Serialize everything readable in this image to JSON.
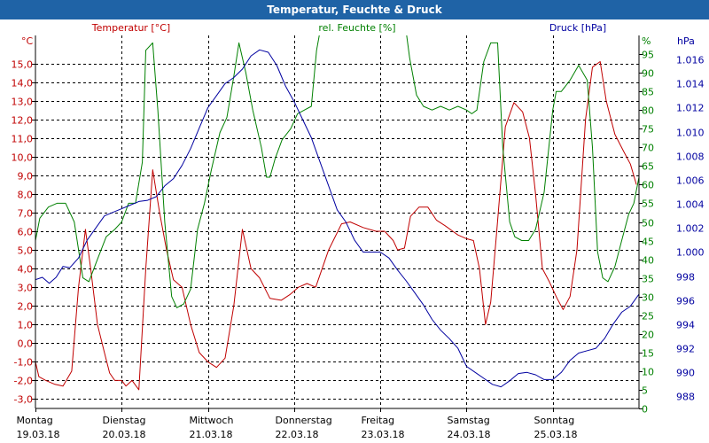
{
  "window": {
    "title": "Temperatur, Feuchte & Druck"
  },
  "colors": {
    "temperature": "#c00000",
    "humidity": "#008000",
    "pressure": "#0000a0",
    "grid": "#000000",
    "title_bar": "#1f63a6"
  },
  "chart_data": {
    "type": "line",
    "title": "Temperatur, Feuchte & Druck",
    "x_range": [
      0,
      7
    ],
    "x_labels": [
      {
        "day": "Montag",
        "date": "19.03.18",
        "x": 0
      },
      {
        "day": "Dienstag",
        "date": "20.03.18",
        "x": 1
      },
      {
        "day": "Mittwoch",
        "date": "21.03.18",
        "x": 2
      },
      {
        "day": "Donnerstag",
        "date": "22.03.18",
        "x": 3
      },
      {
        "day": "Freitag",
        "date": "23.03.18",
        "x": 4
      },
      {
        "day": "Samstag",
        "date": "24.03.18",
        "x": 5
      },
      {
        "day": "Sonntag",
        "date": "25.03.18",
        "x": 6
      }
    ],
    "axes": {
      "temperature": {
        "label": "Temperatur [°C]",
        "unit": "°C",
        "range": [
          -3.5,
          16.5
        ],
        "ticks": [
          -3.0,
          -2.0,
          -1.0,
          0.0,
          1.0,
          2.0,
          3.0,
          4.0,
          5.0,
          6.0,
          7.0,
          8.0,
          9.0,
          10.0,
          11.0,
          12.0,
          13.0,
          14.0,
          15.0
        ],
        "tick_labels": [
          "-3,0",
          "-2,0",
          "-1,0",
          "0,0",
          "1,0",
          "2,0",
          "3,0",
          "4,0",
          "5,0",
          "6,0",
          "7,0",
          "8,0",
          "9,0",
          "10,0",
          "11,0",
          "12,0",
          "13,0",
          "14,0",
          "15,0"
        ]
      },
      "humidity": {
        "label": "rel. Feuchte [%]",
        "unit": "%",
        "range": [
          0,
          100
        ],
        "ticks": [
          0,
          5,
          10,
          15,
          20,
          25,
          30,
          35,
          40,
          45,
          50,
          55,
          60,
          65,
          70,
          75,
          80,
          85,
          90,
          95
        ],
        "tick_labels": [
          "0",
          "5",
          "10",
          "15",
          "20",
          "25",
          "30",
          "35",
          "40",
          "45",
          "50",
          "55",
          "60",
          "65",
          "70",
          "75",
          "80",
          "85",
          "90",
          "95"
        ]
      },
      "pressure": {
        "label": "Druck [hPa]",
        "unit": "hPa",
        "range": [
          987,
          1018
        ],
        "ticks": [
          988,
          990,
          992,
          994,
          996,
          998,
          1000,
          1002,
          1004,
          1006,
          1008,
          1010,
          1012,
          1014,
          1016
        ],
        "tick_labels": [
          "988",
          "990",
          "992",
          "994",
          "996",
          "998",
          "1.000",
          "1.002",
          "1.004",
          "1.006",
          "1.008",
          "1.010",
          "1.012",
          "1.014",
          "1.016"
        ]
      }
    },
    "series": [
      {
        "name": "Temperatur",
        "axis": "temperature",
        "points": [
          [
            0,
            -1
          ],
          [
            0.04,
            -1.8
          ],
          [
            0.12,
            -2.0
          ],
          [
            0.22,
            -2.2
          ],
          [
            0.32,
            -2.3
          ],
          [
            0.42,
            -1.5
          ],
          [
            0.5,
            3
          ],
          [
            0.58,
            6.1
          ],
          [
            0.64,
            4
          ],
          [
            0.72,
            1
          ],
          [
            0.8,
            -0.5
          ],
          [
            0.86,
            -1.6
          ],
          [
            0.92,
            -2.0
          ],
          [
            1.0,
            -2.0
          ],
          [
            1.05,
            -2.3
          ],
          [
            1.12,
            -2.0
          ],
          [
            1.2,
            -2.5
          ],
          [
            1.28,
            4
          ],
          [
            1.36,
            9.3
          ],
          [
            1.44,
            7
          ],
          [
            1.52,
            5
          ],
          [
            1.6,
            3.4
          ],
          [
            1.7,
            3
          ],
          [
            1.8,
            1
          ],
          [
            1.9,
            -0.5
          ],
          [
            2.0,
            -1.0
          ],
          [
            2.1,
            -1.3
          ],
          [
            2.2,
            -0.8
          ],
          [
            2.3,
            2
          ],
          [
            2.4,
            6.1
          ],
          [
            2.5,
            4
          ],
          [
            2.6,
            3.5
          ],
          [
            2.72,
            2.4
          ],
          [
            2.85,
            2.3
          ],
          [
            2.95,
            2.6
          ],
          [
            3.05,
            3
          ],
          [
            3.15,
            3.2
          ],
          [
            3.25,
            3.0
          ],
          [
            3.4,
            5
          ],
          [
            3.55,
            6.4
          ],
          [
            3.65,
            6.5
          ],
          [
            3.8,
            6.2
          ],
          [
            3.95,
            6.0
          ],
          [
            4.05,
            6.0
          ],
          [
            4.15,
            5.5
          ],
          [
            4.2,
            5.0
          ],
          [
            4.28,
            5.1
          ],
          [
            4.35,
            6.8
          ],
          [
            4.45,
            7.3
          ],
          [
            4.55,
            7.3
          ],
          [
            4.65,
            6.6
          ],
          [
            4.75,
            6.3
          ],
          [
            4.9,
            5.8
          ],
          [
            5.0,
            5.6
          ],
          [
            5.08,
            5.5
          ],
          [
            5.15,
            4.0
          ],
          [
            5.22,
            1.0
          ],
          [
            5.28,
            2.2
          ],
          [
            5.35,
            6
          ],
          [
            5.45,
            11.6
          ],
          [
            5.55,
            12.9
          ],
          [
            5.65,
            12.4
          ],
          [
            5.73,
            11.0
          ],
          [
            5.8,
            8.0
          ],
          [
            5.88,
            4.0
          ],
          [
            5.96,
            3.3
          ],
          [
            6.05,
            2.4
          ],
          [
            6.12,
            1.8
          ],
          [
            6.2,
            2.5
          ],
          [
            6.28,
            5
          ],
          [
            6.38,
            12.0
          ],
          [
            6.46,
            14.8
          ],
          [
            6.55,
            15.1
          ],
          [
            6.62,
            13.0
          ],
          [
            6.72,
            11.2
          ],
          [
            6.82,
            10.3
          ],
          [
            6.9,
            9.6
          ],
          [
            6.97,
            8.5
          ]
        ]
      },
      {
        "name": "rel. Feuchte",
        "axis": "humidity",
        "points": [
          [
            0,
            45
          ],
          [
            0.05,
            51
          ],
          [
            0.15,
            54
          ],
          [
            0.25,
            55
          ],
          [
            0.35,
            55
          ],
          [
            0.45,
            50
          ],
          [
            0.55,
            35
          ],
          [
            0.62,
            34
          ],
          [
            0.72,
            40
          ],
          [
            0.82,
            46
          ],
          [
            0.92,
            48
          ],
          [
            1.0,
            50
          ],
          [
            1.08,
            55
          ],
          [
            1.16,
            55
          ],
          [
            1.24,
            66
          ],
          [
            1.28,
            96
          ],
          [
            1.36,
            98
          ],
          [
            1.42,
            80
          ],
          [
            1.5,
            50
          ],
          [
            1.58,
            30
          ],
          [
            1.64,
            27
          ],
          [
            1.72,
            28
          ],
          [
            1.8,
            32
          ],
          [
            1.88,
            48
          ],
          [
            1.96,
            55
          ],
          [
            2.04,
            64
          ],
          [
            2.14,
            74
          ],
          [
            2.22,
            78
          ],
          [
            2.3,
            89
          ],
          [
            2.36,
            98
          ],
          [
            2.44,
            90
          ],
          [
            2.52,
            80
          ],
          [
            2.62,
            70
          ],
          [
            2.68,
            62
          ],
          [
            2.72,
            62
          ],
          [
            2.78,
            67
          ],
          [
            2.86,
            72
          ],
          [
            2.96,
            75
          ],
          [
            3.04,
            79
          ],
          [
            3.12,
            80
          ],
          [
            3.2,
            81
          ],
          [
            3.26,
            96
          ],
          [
            3.3,
            101
          ],
          [
            4.3,
            101
          ],
          [
            4.34,
            94
          ],
          [
            4.42,
            84
          ],
          [
            4.5,
            81
          ],
          [
            4.6,
            80
          ],
          [
            4.7,
            81
          ],
          [
            4.8,
            80
          ],
          [
            4.9,
            81
          ],
          [
            5.0,
            80
          ],
          [
            5.06,
            79
          ],
          [
            5.12,
            80
          ],
          [
            5.2,
            93
          ],
          [
            5.28,
            98
          ],
          [
            5.36,
            98
          ],
          [
            5.42,
            70
          ],
          [
            5.5,
            50
          ],
          [
            5.56,
            46
          ],
          [
            5.64,
            45
          ],
          [
            5.72,
            45
          ],
          [
            5.8,
            48
          ],
          [
            5.9,
            58
          ],
          [
            6.0,
            80
          ],
          [
            6.04,
            85
          ],
          [
            6.1,
            85
          ],
          [
            6.2,
            88
          ],
          [
            6.3,
            92
          ],
          [
            6.4,
            88
          ],
          [
            6.46,
            70
          ],
          [
            6.52,
            42
          ],
          [
            6.58,
            35
          ],
          [
            6.64,
            34
          ],
          [
            6.72,
            38
          ],
          [
            6.8,
            45
          ],
          [
            6.88,
            52
          ],
          [
            6.94,
            55
          ],
          [
            7.0,
            62
          ]
        ]
      },
      {
        "name": "Druck",
        "axis": "pressure",
        "points": [
          [
            0,
            997.7
          ],
          [
            0.08,
            997.9
          ],
          [
            0.16,
            997.4
          ],
          [
            0.24,
            997.9
          ],
          [
            0.32,
            998.8
          ],
          [
            0.4,
            998.7
          ],
          [
            0.5,
            999.5
          ],
          [
            0.6,
            1001.0
          ],
          [
            0.7,
            1002.0
          ],
          [
            0.8,
            1003.0
          ],
          [
            0.9,
            1003.3
          ],
          [
            1.0,
            1003.6
          ],
          [
            1.1,
            1003.9
          ],
          [
            1.2,
            1004.2
          ],
          [
            1.3,
            1004.3
          ],
          [
            1.4,
            1004.6
          ],
          [
            1.5,
            1005.5
          ],
          [
            1.6,
            1006.1
          ],
          [
            1.7,
            1007.2
          ],
          [
            1.8,
            1008.6
          ],
          [
            1.9,
            1010.3
          ],
          [
            2.0,
            1012.0
          ],
          [
            2.1,
            1013.0
          ],
          [
            2.2,
            1014.0
          ],
          [
            2.3,
            1014.5
          ],
          [
            2.4,
            1015.2
          ],
          [
            2.5,
            1016.3
          ],
          [
            2.6,
            1016.8
          ],
          [
            2.7,
            1016.6
          ],
          [
            2.8,
            1015.5
          ],
          [
            2.9,
            1013.8
          ],
          [
            3.0,
            1012.5
          ],
          [
            3.1,
            1011.0
          ],
          [
            3.2,
            1009.5
          ],
          [
            3.3,
            1007.5
          ],
          [
            3.4,
            1005.5
          ],
          [
            3.5,
            1003.5
          ],
          [
            3.6,
            1002.5
          ],
          [
            3.7,
            1001.0
          ],
          [
            3.8,
            1000.0
          ],
          [
            3.9,
            1000.0
          ],
          [
            4.0,
            1000.0
          ],
          [
            4.1,
            999.5
          ],
          [
            4.2,
            998.5
          ],
          [
            4.3,
            997.6
          ],
          [
            4.4,
            996.6
          ],
          [
            4.5,
            995.6
          ],
          [
            4.6,
            994.4
          ],
          [
            4.7,
            993.5
          ],
          [
            4.8,
            992.8
          ],
          [
            4.9,
            992.0
          ],
          [
            5.0,
            990.5
          ],
          [
            5.1,
            990.0
          ],
          [
            5.2,
            989.5
          ],
          [
            5.3,
            989.0
          ],
          [
            5.4,
            988.8
          ],
          [
            5.5,
            989.3
          ],
          [
            5.6,
            989.9
          ],
          [
            5.7,
            990.0
          ],
          [
            5.8,
            989.8
          ],
          [
            5.9,
            989.4
          ],
          [
            6.0,
            989.4
          ],
          [
            6.1,
            990.0
          ],
          [
            6.2,
            991.0
          ],
          [
            6.3,
            991.6
          ],
          [
            6.4,
            991.8
          ],
          [
            6.5,
            992.0
          ],
          [
            6.6,
            992.8
          ],
          [
            6.7,
            994.0
          ],
          [
            6.8,
            995.0
          ],
          [
            6.9,
            995.5
          ],
          [
            7.0,
            996.5
          ]
        ]
      }
    ]
  }
}
